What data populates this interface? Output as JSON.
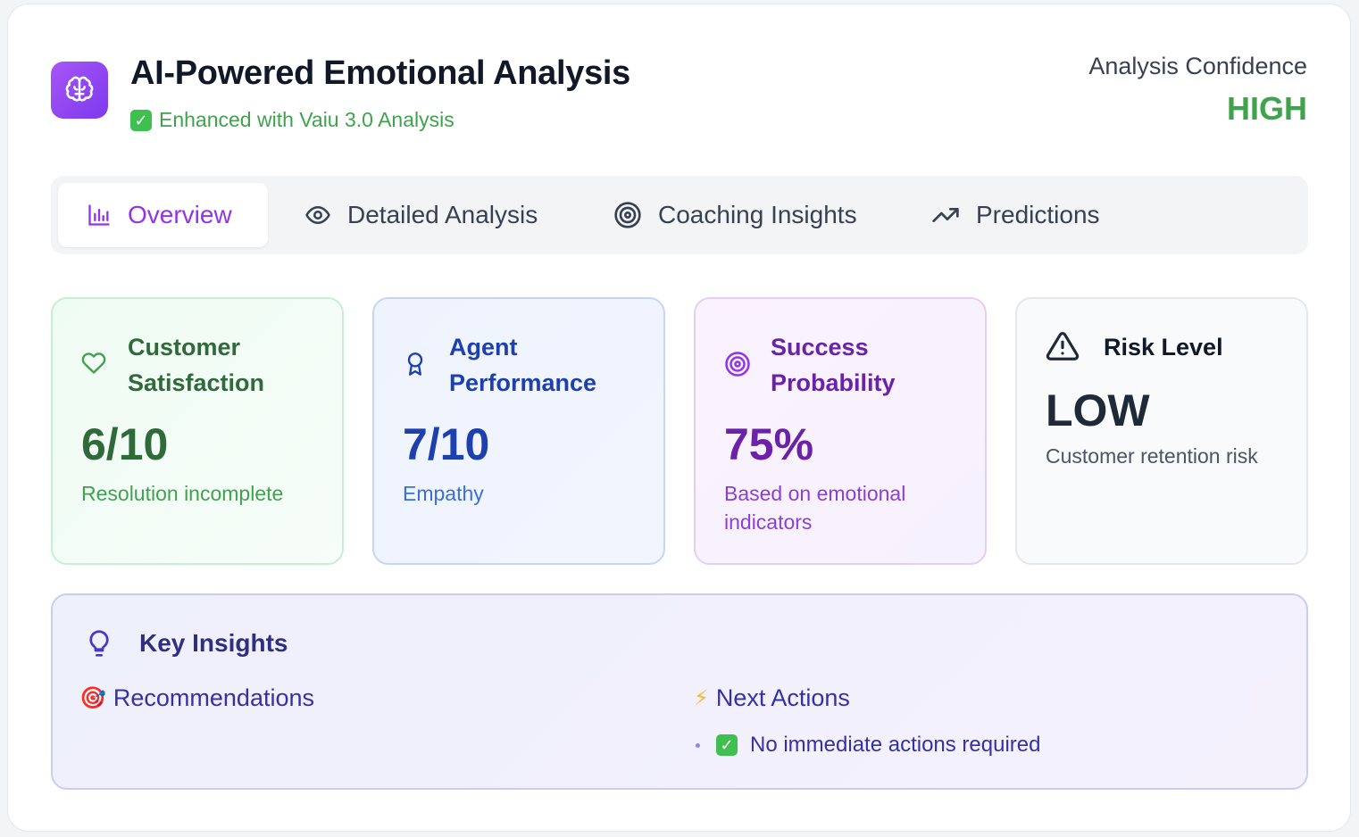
{
  "header": {
    "title": "AI-Powered Emotional Analysis",
    "subtitle_check": "✓",
    "subtitle": "Enhanced with Vaiu 3.0 Analysis",
    "confidence_label": "Analysis Confidence",
    "confidence_value": "HIGH",
    "icon": "brain-icon"
  },
  "tabs": [
    {
      "label": "Overview",
      "icon": "bar-chart-icon",
      "active": true
    },
    {
      "label": "Detailed Analysis",
      "icon": "eye-icon",
      "active": false
    },
    {
      "label": "Coaching Insights",
      "icon": "target-icon",
      "active": false
    },
    {
      "label": "Predictions",
      "icon": "trending-up-icon",
      "active": false
    }
  ],
  "metrics": [
    {
      "title": "Customer Satisfaction",
      "value": "6/10",
      "description": "Resolution incomplete",
      "icon": "heart-icon",
      "color": "#2f6b3a"
    },
    {
      "title": "Agent Performance",
      "value": "7/10",
      "description": "Empathy",
      "icon": "award-icon",
      "color": "#1e40af"
    },
    {
      "title": "Success Probability",
      "value": "75%",
      "description": "Based on emotional indicators",
      "icon": "target-icon",
      "color": "#6b21a8"
    },
    {
      "title": "Risk Level",
      "value": "LOW",
      "description": "Customer retention risk",
      "icon": "alert-triangle-icon",
      "color": "#1f2937"
    }
  ],
  "insights": {
    "title": "Key Insights",
    "icon": "lightbulb-icon",
    "recommendations": {
      "label": "Recommendations",
      "emoji": "🎯"
    },
    "next_actions": {
      "label": "Next Actions",
      "emoji": "⚡",
      "items": [
        {
          "check": "✓",
          "text": "No immediate actions required"
        }
      ]
    }
  },
  "colors": {
    "accent": "#9333ea",
    "success": "#3fa34d"
  }
}
